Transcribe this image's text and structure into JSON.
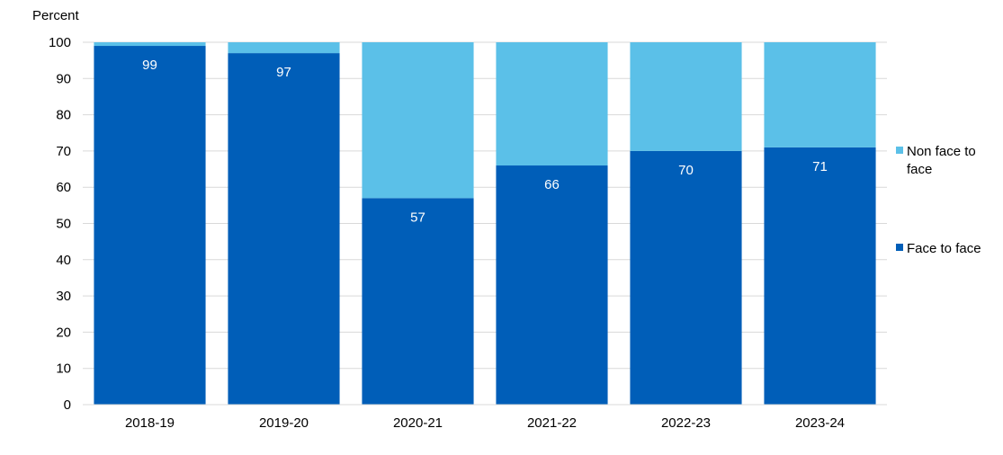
{
  "chart_data": {
    "type": "bar",
    "stacked": true,
    "ylabel": "Percent",
    "ylim": [
      0,
      100
    ],
    "yticks": [
      0,
      10,
      20,
      30,
      40,
      50,
      60,
      70,
      80,
      90,
      100
    ],
    "grid": true,
    "legend_position": "right",
    "categories": [
      "2018-19",
      "2019-20",
      "2020-21",
      "2021-22",
      "2022-23",
      "2023-24"
    ],
    "series": [
      {
        "name": "Face to face",
        "values": [
          99,
          97,
          57,
          66,
          70,
          71
        ],
        "color": "#005EB8",
        "labels": [
          "99",
          "97",
          "57",
          "66",
          "70",
          "71"
        ]
      },
      {
        "name": "Non face to face",
        "values": [
          1,
          3,
          43,
          34,
          30,
          29
        ],
        "color": "#5BC0E8"
      }
    ],
    "legend": [
      {
        "lines": [
          "Non face to",
          "face"
        ],
        "color": "#5BC0E8"
      },
      {
        "lines": [
          "Face to face"
        ],
        "color": "#005EB8"
      }
    ]
  }
}
